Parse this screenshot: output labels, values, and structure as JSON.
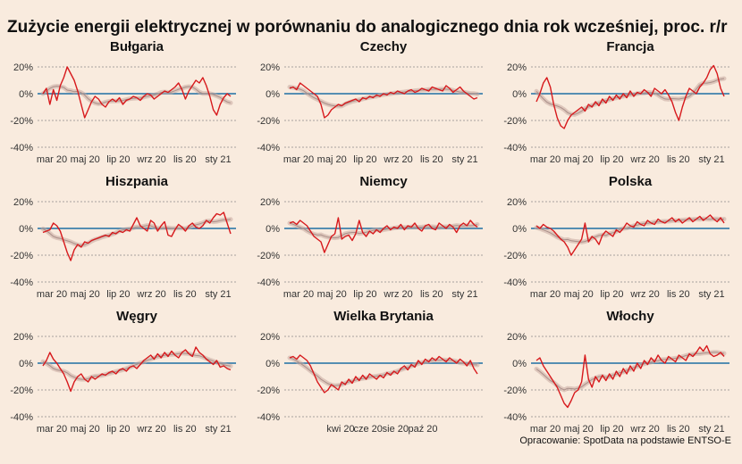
{
  "title": "Zużycie energii elektrycznej w porównaniu do analogicznego dnia rok wcześniej, proc. r/r",
  "caption": "Opracowanie: SpotData na podstawie ENTSO-E",
  "colors": {
    "background": "#f9ebde",
    "series": "#d7191c",
    "trend": "#c9a9a0",
    "zero_line": "#1f6fa3",
    "grid": "#8a8a8a"
  },
  "chart_data": [
    {
      "type": "line",
      "title": "Bułgaria",
      "x_ticks": [
        "mar 20",
        "maj 20",
        "lip 20",
        "wrz 20",
        "lis 20",
        "sty 21"
      ],
      "y_ticks": [
        "20%",
        "0%",
        "-20%",
        "-40%"
      ],
      "ylim": [
        -40,
        20
      ],
      "y_unit": "%",
      "series": [
        {
          "values": [
            0,
            4,
            -8,
            3,
            -5,
            6,
            12,
            20,
            15,
            10,
            2,
            -8,
            -18,
            -12,
            -6,
            -2,
            -4,
            -8,
            -10,
            -6,
            -4,
            -6,
            -3,
            -8,
            -5,
            -4,
            -2,
            -3,
            -5,
            -2,
            0,
            -1,
            -4,
            -2,
            0,
            2,
            1,
            3,
            5,
            8,
            3,
            -4,
            2,
            6,
            10,
            8,
            12,
            6,
            -2,
            -12,
            -16,
            -8,
            -3,
            0,
            -2
          ]
        }
      ]
    },
    {
      "type": "line",
      "title": "Czechy",
      "x_ticks": [
        "mar 20",
        "maj 20",
        "lip 20",
        "wrz 20",
        "lis 20",
        "sty 21"
      ],
      "y_ticks": [
        "20%",
        "0%",
        "-20%",
        "-40%"
      ],
      "ylim": [
        -40,
        20
      ],
      "y_unit": "%",
      "series": [
        {
          "values": [
            4,
            5,
            3,
            8,
            6,
            4,
            2,
            0,
            -2,
            -8,
            -18,
            -16,
            -12,
            -10,
            -8,
            -9,
            -7,
            -6,
            -5,
            -4,
            -6,
            -3,
            -4,
            -2,
            -3,
            -1,
            -2,
            0,
            -1,
            1,
            0,
            2,
            1,
            0,
            2,
            3,
            1,
            2,
            4,
            3,
            2,
            5,
            4,
            3,
            2,
            6,
            4,
            1,
            3,
            5,
            2,
            0,
            -2,
            -4,
            -3
          ]
        }
      ]
    },
    {
      "type": "line",
      "title": "Francja",
      "x_ticks": [
        "mar 20",
        "maj 20",
        "lip 20",
        "wrz 20",
        "lis 20",
        "sty 21"
      ],
      "y_ticks": [
        "20%",
        "0%",
        "-20%",
        "-40%"
      ],
      "ylim": [
        -40,
        20
      ],
      "y_unit": "%",
      "series": [
        {
          "values": [
            -6,
            0,
            8,
            12,
            5,
            -8,
            -18,
            -24,
            -26,
            -20,
            -16,
            -14,
            -12,
            -10,
            -13,
            -8,
            -10,
            -6,
            -9,
            -4,
            -7,
            -2,
            -5,
            -1,
            -4,
            0,
            -3,
            2,
            -2,
            1,
            0,
            3,
            1,
            -2,
            4,
            2,
            0,
            3,
            -1,
            -6,
            -14,
            -20,
            -10,
            -2,
            4,
            2,
            0,
            5,
            8,
            12,
            18,
            21,
            15,
            4,
            -2
          ]
        }
      ]
    },
    {
      "type": "line",
      "title": "Hiszpania",
      "x_ticks": [
        "mar 20",
        "maj 20",
        "lip 20",
        "wrz 20",
        "lis 20",
        "sty 21"
      ],
      "y_ticks": [
        "20%",
        "0%",
        "-20%",
        "-40%"
      ],
      "ylim": [
        -40,
        20
      ],
      "y_unit": "%",
      "series": [
        {
          "values": [
            -3,
            -2,
            -1,
            4,
            2,
            -2,
            -10,
            -18,
            -24,
            -16,
            -12,
            -14,
            -10,
            -11,
            -9,
            -8,
            -7,
            -6,
            -5,
            -6,
            -3,
            -4,
            -2,
            -3,
            -1,
            -2,
            3,
            8,
            2,
            0,
            -2,
            6,
            4,
            -2,
            2,
            5,
            -5,
            -6,
            -1,
            3,
            1,
            -2,
            2,
            4,
            1,
            0,
            2,
            6,
            4,
            8,
            11,
            10,
            12,
            4,
            -4
          ]
        }
      ]
    },
    {
      "type": "line",
      "title": "Niemcy",
      "x_ticks": [
        "mar 20",
        "maj 20",
        "lip 20",
        "wrz 20",
        "lis 20",
        "sty 21"
      ],
      "y_ticks": [
        "20%",
        "0%",
        "-20%",
        "-40%"
      ],
      "ylim": [
        -40,
        20
      ],
      "y_unit": "%",
      "series": [
        {
          "values": [
            4,
            5,
            3,
            6,
            4,
            2,
            -2,
            -6,
            -8,
            -10,
            -18,
            -12,
            -6,
            -4,
            8,
            -8,
            -6,
            -5,
            -9,
            -4,
            6,
            -3,
            -6,
            -2,
            -4,
            -1,
            -3,
            0,
            2,
            -1,
            1,
            0,
            3,
            -1,
            2,
            1,
            4,
            0,
            -2,
            2,
            3,
            0,
            -1,
            4,
            2,
            0,
            3,
            1,
            -3,
            2,
            4,
            2,
            6,
            3,
            1
          ]
        }
      ]
    },
    {
      "type": "line",
      "title": "Polska",
      "x_ticks": [
        "mar 20",
        "maj 20",
        "lip 20",
        "wrz 20",
        "lis 20",
        "sty 21"
      ],
      "y_ticks": [
        "20%",
        "0%",
        "-20%",
        "-40%"
      ],
      "ylim": [
        -40,
        20
      ],
      "y_unit": "%",
      "series": [
        {
          "values": [
            2,
            0,
            3,
            1,
            0,
            -2,
            -5,
            -8,
            -10,
            -14,
            -20,
            -16,
            -12,
            -8,
            4,
            -10,
            -6,
            -8,
            -12,
            -5,
            -2,
            -4,
            -6,
            -1,
            -3,
            0,
            4,
            2,
            1,
            5,
            3,
            2,
            6,
            4,
            3,
            7,
            5,
            4,
            6,
            8,
            5,
            7,
            4,
            6,
            8,
            5,
            7,
            9,
            6,
            8,
            10,
            7,
            5,
            8,
            4
          ]
        }
      ]
    },
    {
      "type": "line",
      "title": "Węgry",
      "x_ticks": [
        "mar 20",
        "maj 20",
        "lip 20",
        "wrz 20",
        "lis 20",
        "sty 21"
      ],
      "y_ticks": [
        "20%",
        "0%",
        "-20%",
        "-40%"
      ],
      "ylim": [
        -40,
        20
      ],
      "y_unit": "%",
      "series": [
        {
          "values": [
            -2,
            2,
            8,
            3,
            0,
            -4,
            -8,
            -14,
            -21,
            -14,
            -10,
            -8,
            -12,
            -14,
            -10,
            -12,
            -10,
            -8,
            -9,
            -7,
            -6,
            -8,
            -5,
            -4,
            -6,
            -3,
            -2,
            -4,
            -1,
            2,
            4,
            6,
            3,
            7,
            4,
            8,
            5,
            9,
            6,
            4,
            8,
            10,
            7,
            5,
            12,
            8,
            6,
            3,
            1,
            -1,
            2,
            -3,
            -2,
            -4,
            -5
          ]
        }
      ]
    },
    {
      "type": "line",
      "title": "Wielka Brytania",
      "x_ticks": [
        "kwi 20",
        "cze 20",
        "sie 20",
        "paź 20"
      ],
      "y_ticks": [
        "20%",
        "0%",
        "-20%",
        "-40%"
      ],
      "ylim": [
        -40,
        20
      ],
      "y_unit": "%",
      "series": [
        {
          "values": [
            4,
            5,
            3,
            6,
            4,
            2,
            -2,
            -8,
            -14,
            -18,
            -22,
            -20,
            -16,
            -18,
            -20,
            -14,
            -16,
            -12,
            -15,
            -10,
            -13,
            -9,
            -12,
            -8,
            -10,
            -12,
            -9,
            -11,
            -7,
            -9,
            -6,
            -8,
            -4,
            -2,
            -5,
            -1,
            -3,
            2,
            -1,
            3,
            1,
            4,
            2,
            5,
            3,
            1,
            4,
            2,
            0,
            3,
            1,
            -2,
            2,
            -4,
            -8
          ]
        }
      ]
    },
    {
      "type": "line",
      "title": "Włochy",
      "x_ticks": [
        "mar 20",
        "maj 20",
        "lip 20",
        "wrz 20",
        "lis 20",
        "sty 21"
      ],
      "y_ticks": [
        "20%",
        "0%",
        "-20%",
        "-40%"
      ],
      "ylim": [
        -40,
        20
      ],
      "y_unit": "%",
      "series": [
        {
          "values": [
            2,
            4,
            -2,
            -6,
            -10,
            -14,
            -18,
            -24,
            -30,
            -33,
            -28,
            -22,
            -20,
            -14,
            6,
            -12,
            -18,
            -10,
            -14,
            -9,
            -13,
            -8,
            -12,
            -6,
            -10,
            -4,
            -8,
            -2,
            -6,
            0,
            -4,
            2,
            -1,
            4,
            1,
            6,
            2,
            0,
            5,
            3,
            1,
            6,
            4,
            2,
            7,
            5,
            8,
            12,
            9,
            13,
            7,
            5,
            6,
            8,
            5
          ]
        }
      ]
    }
  ]
}
